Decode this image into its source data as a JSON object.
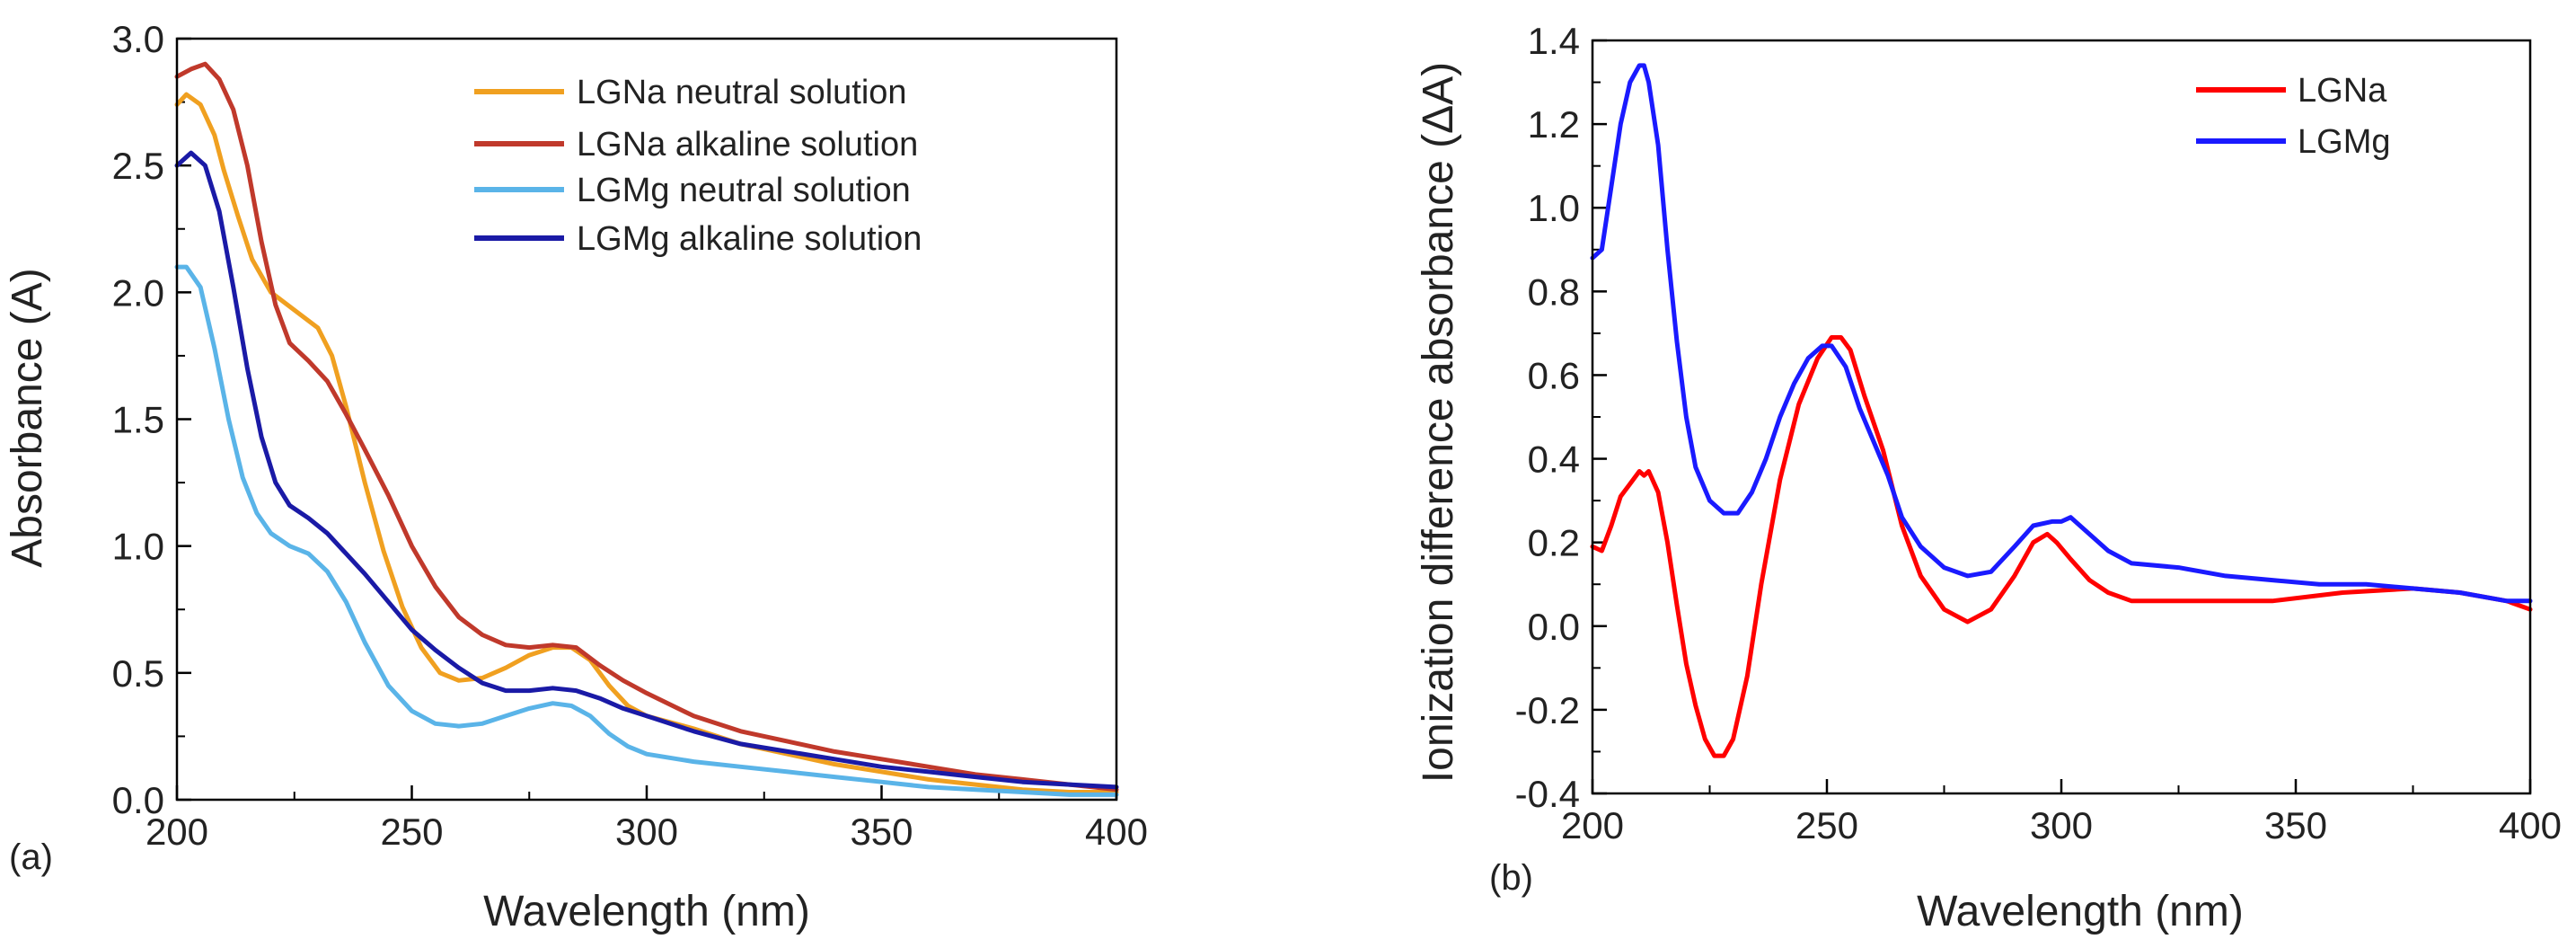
{
  "chart_data": [
    {
      "type": "line",
      "panel_label": "(a)",
      "xlabel": "Wavelength (nm)",
      "ylabel": "Absorbance (A)",
      "xlim": [
        200,
        400
      ],
      "ylim": [
        0.0,
        3.0
      ],
      "xticks": [
        200,
        250,
        300,
        350,
        400
      ],
      "xtick_labels": [
        "200",
        "250",
        "300",
        "350",
        "400"
      ],
      "yticks": [
        0.0,
        0.5,
        1.0,
        1.5,
        2.0,
        2.5,
        3.0
      ],
      "ytick_labels": [
        "0.0",
        "0.5",
        "1.0",
        "1.5",
        "2.0",
        "2.5",
        "3.0"
      ],
      "legend_position": "top-right",
      "grid": false,
      "series": [
        {
          "name": "LGNa neutral solution",
          "color": "#f0a020",
          "points": [
            [
              200,
              2.74
            ],
            [
              202,
              2.78
            ],
            [
              205,
              2.74
            ],
            [
              208,
              2.62
            ],
            [
              210,
              2.48
            ],
            [
              213,
              2.3
            ],
            [
              216,
              2.13
            ],
            [
              220,
              2.0
            ],
            [
              225,
              1.93
            ],
            [
              230,
              1.86
            ],
            [
              233,
              1.75
            ],
            [
              236,
              1.55
            ],
            [
              240,
              1.25
            ],
            [
              244,
              0.98
            ],
            [
              248,
              0.76
            ],
            [
              252,
              0.6
            ],
            [
              256,
              0.5
            ],
            [
              260,
              0.47
            ],
            [
              265,
              0.48
            ],
            [
              270,
              0.52
            ],
            [
              275,
              0.57
            ],
            [
              280,
              0.6
            ],
            [
              284,
              0.6
            ],
            [
              288,
              0.55
            ],
            [
              292,
              0.45
            ],
            [
              296,
              0.37
            ],
            [
              300,
              0.33
            ],
            [
              310,
              0.28
            ],
            [
              320,
              0.22
            ],
            [
              330,
              0.18
            ],
            [
              340,
              0.14
            ],
            [
              350,
              0.11
            ],
            [
              360,
              0.08
            ],
            [
              370,
              0.06
            ],
            [
              380,
              0.04
            ],
            [
              390,
              0.03
            ],
            [
              400,
              0.03
            ]
          ]
        },
        {
          "name": "LGNa alkaline solution",
          "color": "#c0392b",
          "points": [
            [
              200,
              2.85
            ],
            [
              203,
              2.88
            ],
            [
              206,
              2.9
            ],
            [
              209,
              2.84
            ],
            [
              212,
              2.72
            ],
            [
              215,
              2.5
            ],
            [
              218,
              2.2
            ],
            [
              221,
              1.95
            ],
            [
              224,
              1.8
            ],
            [
              228,
              1.73
            ],
            [
              232,
              1.65
            ],
            [
              236,
              1.52
            ],
            [
              240,
              1.38
            ],
            [
              245,
              1.2
            ],
            [
              250,
              1.0
            ],
            [
              255,
              0.84
            ],
            [
              260,
              0.72
            ],
            [
              265,
              0.65
            ],
            [
              270,
              0.61
            ],
            [
              275,
              0.6
            ],
            [
              280,
              0.61
            ],
            [
              285,
              0.6
            ],
            [
              290,
              0.53
            ],
            [
              295,
              0.47
            ],
            [
              300,
              0.42
            ],
            [
              310,
              0.33
            ],
            [
              320,
              0.27
            ],
            [
              330,
              0.23
            ],
            [
              340,
              0.19
            ],
            [
              350,
              0.16
            ],
            [
              360,
              0.13
            ],
            [
              370,
              0.1
            ],
            [
              380,
              0.08
            ],
            [
              390,
              0.06
            ],
            [
              400,
              0.04
            ]
          ]
        },
        {
          "name": "LGMg neutral solution",
          "color": "#5ab4e8",
          "points": [
            [
              200,
              2.1
            ],
            [
              202,
              2.1
            ],
            [
              205,
              2.02
            ],
            [
              208,
              1.78
            ],
            [
              211,
              1.5
            ],
            [
              214,
              1.27
            ],
            [
              217,
              1.13
            ],
            [
              220,
              1.05
            ],
            [
              224,
              1.0
            ],
            [
              228,
              0.97
            ],
            [
              232,
              0.9
            ],
            [
              236,
              0.78
            ],
            [
              240,
              0.62
            ],
            [
              245,
              0.45
            ],
            [
              250,
              0.35
            ],
            [
              255,
              0.3
            ],
            [
              260,
              0.29
            ],
            [
              265,
              0.3
            ],
            [
              270,
              0.33
            ],
            [
              275,
              0.36
            ],
            [
              280,
              0.38
            ],
            [
              284,
              0.37
            ],
            [
              288,
              0.33
            ],
            [
              292,
              0.26
            ],
            [
              296,
              0.21
            ],
            [
              300,
              0.18
            ],
            [
              310,
              0.15
            ],
            [
              320,
              0.13
            ],
            [
              330,
              0.11
            ],
            [
              340,
              0.09
            ],
            [
              350,
              0.07
            ],
            [
              360,
              0.05
            ],
            [
              370,
              0.04
            ],
            [
              380,
              0.03
            ],
            [
              390,
              0.02
            ],
            [
              400,
              0.02
            ]
          ]
        },
        {
          "name": "LGMg alkaline solution",
          "color": "#1a1aa6",
          "points": [
            [
              200,
              2.5
            ],
            [
              203,
              2.55
            ],
            [
              206,
              2.5
            ],
            [
              209,
              2.32
            ],
            [
              212,
              2.02
            ],
            [
              215,
              1.7
            ],
            [
              218,
              1.43
            ],
            [
              221,
              1.25
            ],
            [
              224,
              1.16
            ],
            [
              228,
              1.11
            ],
            [
              232,
              1.05
            ],
            [
              236,
              0.97
            ],
            [
              240,
              0.89
            ],
            [
              245,
              0.78
            ],
            [
              250,
              0.67
            ],
            [
              255,
              0.59
            ],
            [
              260,
              0.52
            ],
            [
              265,
              0.46
            ],
            [
              270,
              0.43
            ],
            [
              275,
              0.43
            ],
            [
              280,
              0.44
            ],
            [
              285,
              0.43
            ],
            [
              290,
              0.4
            ],
            [
              295,
              0.36
            ],
            [
              300,
              0.33
            ],
            [
              310,
              0.27
            ],
            [
              320,
              0.22
            ],
            [
              330,
              0.19
            ],
            [
              340,
              0.16
            ],
            [
              350,
              0.13
            ],
            [
              360,
              0.11
            ],
            [
              370,
              0.09
            ],
            [
              380,
              0.07
            ],
            [
              390,
              0.06
            ],
            [
              400,
              0.05
            ]
          ]
        }
      ]
    },
    {
      "type": "line",
      "panel_label": "(b)",
      "xlabel": "Wavelength (nm)",
      "ylabel": "Ionization difference absorbance (ΔA)",
      "xlim": [
        200,
        400
      ],
      "ylim": [
        -0.4,
        1.4
      ],
      "xticks": [
        200,
        250,
        300,
        350,
        400
      ],
      "xtick_labels": [
        "200",
        "250",
        "300",
        "350",
        "400"
      ],
      "yticks": [
        -0.4,
        -0.2,
        0.0,
        0.2,
        0.4,
        0.6,
        0.8,
        1.0,
        1.2,
        1.4
      ],
      "ytick_labels": [
        "-0.4",
        "-0.2",
        "0.0",
        "0.2",
        "0.4",
        "0.6",
        "0.8",
        "1.0",
        "1.2",
        "1.4"
      ],
      "legend_position": "top-right",
      "grid": false,
      "series": [
        {
          "name": "LGNa",
          "color": "#ff0000",
          "points": [
            [
              200,
              0.19
            ],
            [
              202,
              0.18
            ],
            [
              204,
              0.24
            ],
            [
              206,
              0.31
            ],
            [
              208,
              0.34
            ],
            [
              210,
              0.37
            ],
            [
              211,
              0.36
            ],
            [
              212,
              0.37
            ],
            [
              214,
              0.32
            ],
            [
              216,
              0.2
            ],
            [
              218,
              0.05
            ],
            [
              220,
              -0.09
            ],
            [
              222,
              -0.19
            ],
            [
              224,
              -0.27
            ],
            [
              226,
              -0.31
            ],
            [
              228,
              -0.31
            ],
            [
              230,
              -0.27
            ],
            [
              233,
              -0.12
            ],
            [
              236,
              0.1
            ],
            [
              240,
              0.35
            ],
            [
              244,
              0.53
            ],
            [
              248,
              0.64
            ],
            [
              251,
              0.69
            ],
            [
              253,
              0.69
            ],
            [
              255,
              0.66
            ],
            [
              258,
              0.55
            ],
            [
              262,
              0.42
            ],
            [
              266,
              0.24
            ],
            [
              270,
              0.12
            ],
            [
              275,
              0.04
            ],
            [
              280,
              0.01
            ],
            [
              285,
              0.04
            ],
            [
              290,
              0.12
            ],
            [
              294,
              0.2
            ],
            [
              297,
              0.22
            ],
            [
              299,
              0.2
            ],
            [
              302,
              0.16
            ],
            [
              306,
              0.11
            ],
            [
              310,
              0.08
            ],
            [
              315,
              0.06
            ],
            [
              330,
              0.06
            ],
            [
              345,
              0.06
            ],
            [
              360,
              0.08
            ],
            [
              375,
              0.09
            ],
            [
              385,
              0.08
            ],
            [
              395,
              0.06
            ],
            [
              400,
              0.04
            ]
          ]
        },
        {
          "name": "LGMg",
          "color": "#1a1aff",
          "points": [
            [
              200,
              0.88
            ],
            [
              202,
              0.9
            ],
            [
              204,
              1.05
            ],
            [
              206,
              1.2
            ],
            [
              208,
              1.3
            ],
            [
              210,
              1.34
            ],
            [
              211,
              1.34
            ],
            [
              212,
              1.3
            ],
            [
              214,
              1.15
            ],
            [
              216,
              0.9
            ],
            [
              218,
              0.68
            ],
            [
              220,
              0.5
            ],
            [
              222,
              0.38
            ],
            [
              225,
              0.3
            ],
            [
              228,
              0.27
            ],
            [
              231,
              0.27
            ],
            [
              234,
              0.32
            ],
            [
              237,
              0.4
            ],
            [
              240,
              0.5
            ],
            [
              243,
              0.58
            ],
            [
              246,
              0.64
            ],
            [
              249,
              0.67
            ],
            [
              251,
              0.67
            ],
            [
              254,
              0.62
            ],
            [
              257,
              0.52
            ],
            [
              260,
              0.44
            ],
            [
              263,
              0.36
            ],
            [
              266,
              0.26
            ],
            [
              270,
              0.19
            ],
            [
              275,
              0.14
            ],
            [
              280,
              0.12
            ],
            [
              285,
              0.13
            ],
            [
              290,
              0.19
            ],
            [
              294,
              0.24
            ],
            [
              298,
              0.25
            ],
            [
              300,
              0.25
            ],
            [
              302,
              0.26
            ],
            [
              305,
              0.23
            ],
            [
              310,
              0.18
            ],
            [
              315,
              0.15
            ],
            [
              325,
              0.14
            ],
            [
              335,
              0.12
            ],
            [
              345,
              0.11
            ],
            [
              355,
              0.1
            ],
            [
              365,
              0.1
            ],
            [
              375,
              0.09
            ],
            [
              385,
              0.08
            ],
            [
              395,
              0.06
            ],
            [
              400,
              0.06
            ]
          ]
        }
      ]
    }
  ]
}
